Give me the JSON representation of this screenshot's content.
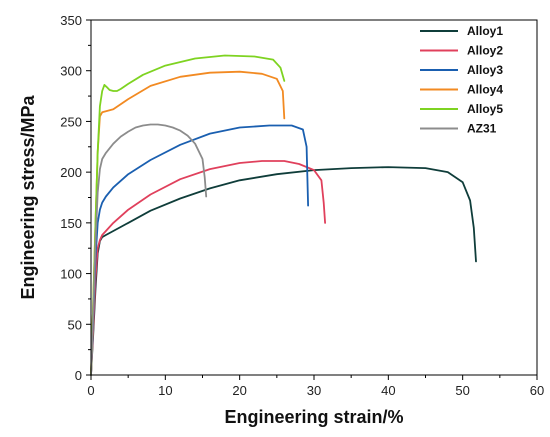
{
  "chart_data": {
    "type": "line",
    "xlabel": "Engineering strain/%",
    "ylabel": "Engineering stress/MPa",
    "xlim": [
      0,
      60
    ],
    "ylim": [
      0,
      350
    ],
    "xticks": [
      0,
      10,
      20,
      30,
      40,
      50,
      60
    ],
    "yticks": [
      0,
      50,
      100,
      150,
      200,
      250,
      300,
      350
    ],
    "grid": false,
    "legend_position": "top-right",
    "series": [
      {
        "name": "Alloy1",
        "color": "#0f3d3a",
        "x": [
          0,
          0.3,
          0.6,
          0.9,
          1.2,
          1.5,
          2,
          3,
          5,
          8,
          12,
          16,
          20,
          25,
          30,
          35,
          40,
          45,
          48,
          50,
          51,
          51.5,
          51.8
        ],
        "y": [
          0,
          40,
          85,
          120,
          132,
          136,
          138,
          142,
          150,
          162,
          174,
          184,
          192,
          198,
          202,
          204,
          205,
          204,
          200,
          190,
          172,
          145,
          112
        ]
      },
      {
        "name": "Alloy2",
        "color": "#e0405c",
        "x": [
          0,
          0.3,
          0.6,
          0.9,
          1.2,
          1.5,
          2,
          3,
          5,
          8,
          12,
          16,
          20,
          23,
          26,
          28,
          30,
          31,
          31.3,
          31.5
        ],
        "y": [
          0,
          45,
          95,
          125,
          133,
          138,
          142,
          150,
          163,
          178,
          193,
          203,
          209,
          211,
          211,
          208,
          202,
          192,
          170,
          150
        ]
      },
      {
        "name": "Alloy3",
        "color": "#1a5fb0",
        "x": [
          0,
          0.3,
          0.6,
          0.9,
          1.2,
          1.5,
          2,
          3,
          5,
          8,
          12,
          16,
          20,
          24,
          27,
          28.5,
          29,
          29.2
        ],
        "y": [
          0,
          55,
          115,
          150,
          163,
          170,
          176,
          185,
          198,
          212,
          227,
          238,
          244,
          246,
          246,
          242,
          225,
          167
        ]
      },
      {
        "name": "Alloy4",
        "color": "#f28a22",
        "x": [
          0,
          0.3,
          0.6,
          0.9,
          1.2,
          1.5,
          2,
          3,
          5,
          8,
          12,
          16,
          20,
          23,
          25,
          25.8,
          26
        ],
        "y": [
          0,
          70,
          150,
          220,
          255,
          259,
          260,
          262,
          272,
          285,
          294,
          298,
          299,
          297,
          292,
          280,
          253
        ]
      },
      {
        "name": "Alloy5",
        "color": "#7ed321",
        "x": [
          0,
          0.3,
          0.6,
          0.9,
          1.2,
          1.5,
          1.8,
          2.1,
          2.5,
          3,
          3.5,
          4,
          5,
          7,
          10,
          14,
          18,
          22,
          24.5,
          25.5,
          26
        ],
        "y": [
          0,
          70,
          150,
          220,
          265,
          280,
          286,
          284,
          281,
          280,
          280,
          282,
          287,
          296,
          305,
          312,
          315,
          314,
          311,
          303,
          290
        ]
      },
      {
        "name": "AZ31",
        "color": "#8c8c8c",
        "x": [
          0,
          0.3,
          0.6,
          0.9,
          1.2,
          1.5,
          2,
          3,
          4,
          5,
          6,
          7,
          8,
          9,
          10,
          11,
          12,
          13,
          14,
          15,
          15.3,
          15.5
        ],
        "y": [
          0,
          60,
          130,
          180,
          203,
          213,
          219,
          228,
          235,
          240,
          244,
          246,
          247,
          247,
          246,
          244,
          241,
          236,
          228,
          213,
          195,
          176
        ]
      }
    ]
  }
}
